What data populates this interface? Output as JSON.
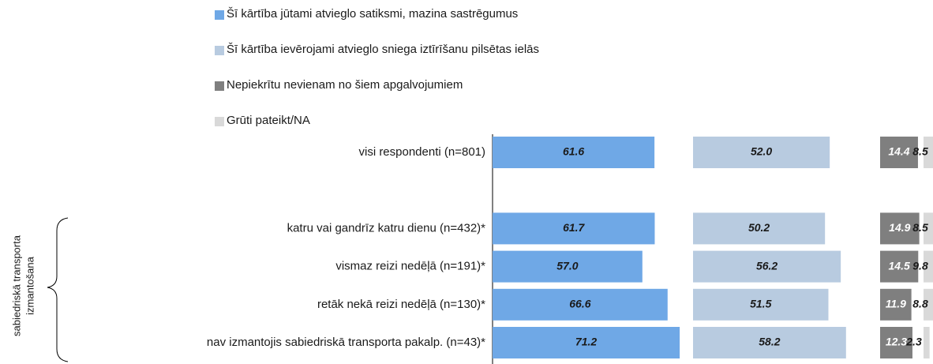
{
  "chart_data": {
    "type": "bar_panels",
    "categories": [
      "visi respondenti (n=801)",
      null,
      "katru vai gandrīz katru dienu (n=432)*",
      "vismaz reizi nedēļā (n=191)*",
      "retāk nekā reizi nedēļā (n=130)*",
      "nav izmantojis sabiedriskā transporta pakalp. (n=43)*"
    ],
    "group_label": [
      "sabiedriskā transporta",
      "izmantošana"
    ],
    "series": [
      {
        "name": "Šī kārtība jūtami atvieglo satiksmi, mazina sastrēgumus",
        "color": "#6fa8e6",
        "label_color": "#1a1a1a",
        "values": [
          61.6,
          null,
          61.7,
          57.0,
          66.6,
          71.2
        ],
        "value_labels": [
          "61.6",
          null,
          "61.7",
          "57.0",
          "66.6",
          "71.2"
        ]
      },
      {
        "name": "Šī kārtība ievērojami atvieglo sniega iztīrīšanu pilsētas ielās",
        "color": "#b8cbe0",
        "label_color": "#1a1a1a",
        "values": [
          52.0,
          null,
          50.2,
          56.2,
          51.5,
          58.2
        ],
        "value_labels": [
          "52.0",
          null,
          "50.2",
          "56.2",
          "51.5",
          "58.2"
        ]
      },
      {
        "name": "Nepiekrītu nevienam no šiem apgalvojumiem",
        "color": "#7f7f7f",
        "label_color": "#ffffff",
        "values": [
          14.4,
          null,
          14.9,
          14.5,
          11.9,
          12.3
        ],
        "value_labels": [
          "14.4",
          null,
          "14.9",
          "14.5",
          "11.9",
          "12.3"
        ]
      },
      {
        "name": "Grūti pateikt/NA",
        "color": "#d9d9d9",
        "label_color": "#1a1a1a",
        "values": [
          8.5,
          null,
          8.5,
          9.8,
          8.8,
          2.3
        ],
        "value_labels": [
          "8.5",
          null,
          "8.5",
          "9.8",
          "8.8",
          "2.3"
        ]
      }
    ]
  }
}
